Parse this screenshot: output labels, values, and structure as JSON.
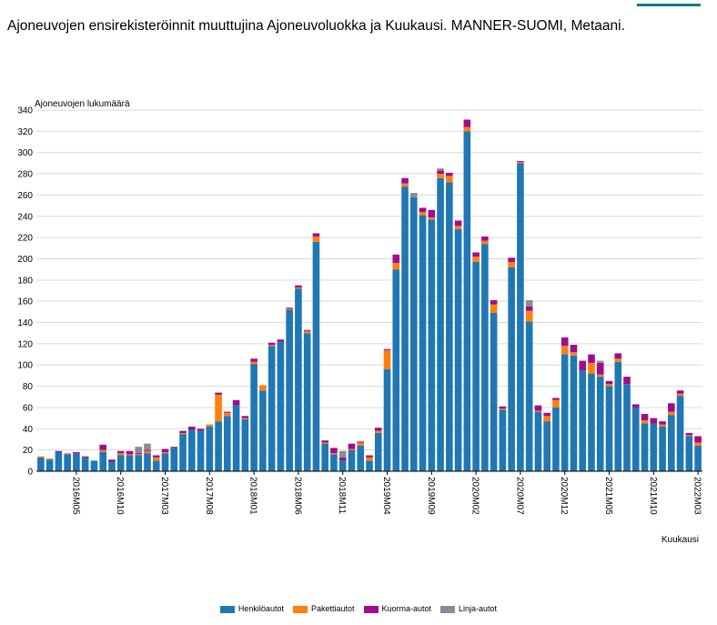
{
  "page": {
    "title": "Ajoneuvojen ensirekisteröinnit muuttujina Ajoneuvoluokka ja Kuukausi. MANNER-SUOMI, Metaani."
  },
  "chart_data": {
    "type": "bar",
    "stacked": true,
    "title": "Ajoneuvojen ensirekisteröinnit muuttujina Ajoneuvoluokka ja Kuukausi. MANNER-SUOMI, Metaani.",
    "ylabel": "Ajoneuvojen lukumäärä",
    "xlabel": "Kuukausi",
    "ylim": [
      0,
      340
    ],
    "yticks": [
      0,
      20,
      40,
      60,
      80,
      100,
      120,
      140,
      160,
      180,
      200,
      220,
      240,
      260,
      280,
      300,
      320,
      340
    ],
    "grid": true,
    "legend_position": "bottom",
    "categories": [
      "2016M01",
      "2016M02",
      "2016M03",
      "2016M04",
      "2016M05",
      "2016M06",
      "2016M07",
      "2016M08",
      "2016M09",
      "2016M10",
      "2016M11",
      "2016M12",
      "2017M01",
      "2017M02",
      "2017M03",
      "2017M04",
      "2017M05",
      "2017M06",
      "2017M07",
      "2017M08",
      "2017M09",
      "2017M10",
      "2017M11",
      "2017M12",
      "2018M01",
      "2018M02",
      "2018M03",
      "2018M04",
      "2018M05",
      "2018M06",
      "2018M07",
      "2018M08",
      "2018M09",
      "2018M10",
      "2018M11",
      "2018M12",
      "2019M01",
      "2019M02",
      "2019M03",
      "2019M04",
      "2019M05",
      "2019M06",
      "2019M07",
      "2019M08",
      "2019M09",
      "2019M10",
      "2019M11",
      "2019M12",
      "2020M01",
      "2020M02",
      "2020M03",
      "2020M04",
      "2020M05",
      "2020M06",
      "2020M07",
      "2020M08",
      "2020M09",
      "2020M10",
      "2020M11",
      "2020M12",
      "2021M01",
      "2021M02",
      "2021M03",
      "2021M04",
      "2021M05",
      "2021M06",
      "2021M07",
      "2021M08",
      "2021M09",
      "2021M10",
      "2021M11",
      "2021M12",
      "2022M01",
      "2022M02",
      "2022M03"
    ],
    "x_tick_labels": [
      "2016M05",
      "2016M10",
      "2017M03",
      "2017M08",
      "2018M01",
      "2018M06",
      "2018M11",
      "2019M04",
      "2019M09",
      "2020M02",
      "2020M07",
      "2020M12",
      "2021M05",
      "2021M10",
      "2022M03"
    ],
    "series": [
      {
        "name": "Henkilöautot",
        "color": "#1f77b4",
        "values": [
          13,
          11,
          18,
          16,
          17,
          13,
          10,
          18,
          9,
          15,
          15,
          15,
          17,
          10,
          17,
          22,
          35,
          39,
          38,
          42,
          47,
          52,
          62,
          49,
          101,
          76,
          118,
          122,
          152,
          172,
          130,
          216,
          26,
          16,
          10,
          20,
          24,
          10,
          36,
          96,
          190,
          268,
          258,
          241,
          237,
          276,
          272,
          228,
          320,
          197,
          214,
          149,
          58,
          192,
          290,
          141,
          56,
          47,
          60,
          110,
          109,
          95,
          92,
          89,
          80,
          103,
          82,
          60,
          45,
          45,
          42,
          53,
          71,
          33,
          24
        ]
      },
      {
        "name": "Pakettiautot",
        "color": "#ff7f0e",
        "values": [
          1,
          1,
          0,
          1,
          0,
          0,
          0,
          2,
          0,
          2,
          1,
          1,
          2,
          3,
          1,
          0,
          1,
          0,
          0,
          2,
          25,
          3,
          0,
          1,
          2,
          5,
          1,
          0,
          1,
          1,
          2,
          5,
          1,
          1,
          0,
          1,
          3,
          3,
          2,
          18,
          6,
          3,
          0,
          3,
          2,
          4,
          6,
          3,
          4,
          5,
          3,
          8,
          1,
          5,
          1,
          10,
          1,
          5,
          7,
          8,
          3,
          0,
          10,
          2,
          2,
          3,
          0,
          0,
          3,
          0,
          2,
          3,
          2,
          1,
          3
        ]
      },
      {
        "name": "Kuorma-autot",
        "color": "#a10c8c",
        "values": [
          0,
          0,
          1,
          0,
          1,
          1,
          0,
          5,
          2,
          2,
          3,
          1,
          1,
          2,
          3,
          1,
          2,
          3,
          2,
          0,
          2,
          1,
          5,
          2,
          3,
          0,
          2,
          2,
          1,
          2,
          1,
          3,
          2,
          5,
          3,
          5,
          1,
          2,
          3,
          1,
          8,
          5,
          0,
          4,
          7,
          3,
          3,
          5,
          7,
          4,
          4,
          4,
          2,
          4,
          1,
          4,
          5,
          3,
          2,
          8,
          7,
          9,
          8,
          11,
          3,
          5,
          7,
          3,
          6,
          5,
          3,
          8,
          3,
          2,
          6
        ]
      },
      {
        "name": "Linja-autot",
        "color": "#8a8a98",
        "values": [
          0,
          0,
          0,
          0,
          0,
          0,
          0,
          0,
          0,
          0,
          0,
          6,
          6,
          0,
          0,
          0,
          0,
          0,
          0,
          0,
          0,
          0,
          0,
          0,
          0,
          0,
          0,
          0,
          0,
          0,
          0,
          0,
          0,
          0,
          6,
          0,
          0,
          0,
          0,
          0,
          0,
          0,
          4,
          0,
          0,
          2,
          0,
          0,
          0,
          0,
          0,
          0,
          0,
          0,
          0,
          6,
          0,
          0,
          0,
          0,
          0,
          0,
          0,
          2,
          0,
          0,
          0,
          0,
          0,
          0,
          0,
          0,
          0,
          0,
          0
        ]
      }
    ]
  }
}
